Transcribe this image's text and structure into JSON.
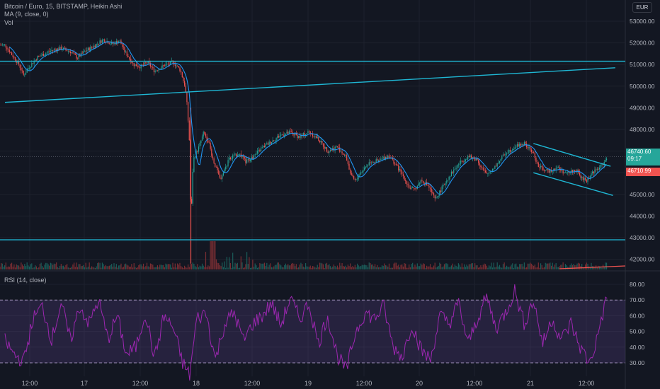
{
  "legend": {
    "main": "Bitcoin / Euro, 15, BITSTAMP, Heikin Ashi",
    "ma": "MA (9, close, 0)",
    "vol": "Vol",
    "rsi": "RSI (14, close)"
  },
  "currency": "EUR",
  "price_tags": {
    "last": "46740.60",
    "countdown": "09:17",
    "ref": "46710.99"
  },
  "colors": {
    "background": "#131722",
    "up": "#26a69a",
    "down": "#ef5350",
    "ma": "#2196f3",
    "trendline": "#1fb7d4",
    "rsi_line": "#9c27b0",
    "rsi_band": "#7e57c2",
    "axis_text": "#b2b5be"
  },
  "chart_data": [
    {
      "type": "candlestick",
      "style": "Heikin Ashi",
      "symbol": "Bitcoin / Euro",
      "interval": "15",
      "exchange": "BITSTAMP",
      "x_ticks": [
        "12:00",
        "17",
        "12:00",
        "18",
        "12:00",
        "19",
        "12:00",
        "20",
        "12:00",
        "21",
        "12:00"
      ],
      "y_ticks": [
        42000,
        43000,
        44000,
        45000,
        46000,
        47000,
        48000,
        49000,
        50000,
        51000,
        52000,
        53000
      ],
      "ylim": [
        41600,
        53300
      ],
      "price_series": [
        [
          "16 07:00",
          51900
        ],
        [
          "16 08:30",
          51450
        ],
        [
          "16 10:00",
          51000
        ],
        [
          "16 11:00",
          50500
        ],
        [
          "16 12:00",
          50850
        ],
        [
          "16 14:00",
          51350
        ],
        [
          "16 17:00",
          51650
        ],
        [
          "16 19:00",
          51750
        ],
        [
          "16 21:00",
          51600
        ],
        [
          "16 22:30",
          51300
        ],
        [
          "17 00:00",
          51600
        ],
        [
          "17 02:00",
          51850
        ],
        [
          "17 04:00",
          52150
        ],
        [
          "17 06:00",
          51950
        ],
        [
          "17 07:30",
          52100
        ],
        [
          "17 08:30",
          51650
        ],
        [
          "17 10:30",
          51000
        ],
        [
          "17 12:00",
          50900
        ],
        [
          "17 13:30",
          51100
        ],
        [
          "17 15:00",
          50700
        ],
        [
          "17 17:00",
          50950
        ],
        [
          "17 19:00",
          51100
        ],
        [
          "17 20:30",
          50750
        ],
        [
          "17 21:30",
          50000
        ],
        [
          "17 22:00",
          49000
        ],
        [
          "17 22:30",
          47200
        ],
        [
          "17 22:45",
          43500
        ],
        [
          "17 23:15",
          46600
        ],
        [
          "18 00:30",
          47200
        ],
        [
          "18 01:30",
          47850
        ],
        [
          "18 02:30",
          47450
        ],
        [
          "18 03:30",
          46600
        ],
        [
          "18 05:00",
          45700
        ],
        [
          "18 06:00",
          46150
        ],
        [
          "18 07:00",
          46650
        ],
        [
          "18 09:00",
          46900
        ],
        [
          "18 10:30",
          46500
        ],
        [
          "18 12:00",
          46700
        ],
        [
          "18 14:00",
          47150
        ],
        [
          "18 16:00",
          47450
        ],
        [
          "18 18:00",
          47750
        ],
        [
          "18 20:00",
          47850
        ],
        [
          "18 22:00",
          47650
        ],
        [
          "19 00:00",
          47900
        ],
        [
          "19 02:00",
          47550
        ],
        [
          "19 04:00",
          47000
        ],
        [
          "19 06:00",
          47200
        ],
        [
          "19 08:00",
          46700
        ],
        [
          "19 09:00",
          45850
        ],
        [
          "19 10:00",
          45600
        ],
        [
          "19 11:00",
          46000
        ],
        [
          "19 13:00",
          46500
        ],
        [
          "19 15:00",
          46550
        ],
        [
          "19 17:00",
          46800
        ],
        [
          "19 18:30",
          46400
        ],
        [
          "19 20:00",
          45900
        ],
        [
          "19 21:30",
          45300
        ],
        [
          "19 22:30",
          45200
        ],
        [
          "20 00:00",
          45650
        ],
        [
          "20 01:30",
          45400
        ],
        [
          "20 03:00",
          44750
        ],
        [
          "20 04:30",
          45300
        ],
        [
          "20 06:00",
          45850
        ],
        [
          "20 08:00",
          46400
        ],
        [
          "20 10:00",
          46750
        ],
        [
          "20 12:00",
          46600
        ],
        [
          "20 13:00",
          46200
        ],
        [
          "20 14:00",
          45900
        ],
        [
          "20 16:00",
          46350
        ],
        [
          "20 18:00",
          46900
        ],
        [
          "20 20:00",
          47200
        ],
        [
          "20 22:00",
          47350
        ],
        [
          "21 00:00",
          46900
        ],
        [
          "21 01:00",
          46300
        ],
        [
          "21 03:00",
          46050
        ],
        [
          "21 05:00",
          46250
        ],
        [
          "21 07:00",
          45950
        ],
        [
          "21 09:00",
          46150
        ],
        [
          "21 10:30",
          45700
        ],
        [
          "21 11:30",
          45650
        ],
        [
          "21 12:30",
          46000
        ],
        [
          "21 14:00",
          46200
        ],
        [
          "21 15:00",
          46450
        ],
        [
          "21 15:45",
          46740.6
        ]
      ],
      "horizontal_lines": [
        51150,
        42900
      ],
      "trend_lines": [
        {
          "from": [
            "16 07:00",
            49250
          ],
          "to": [
            "21 17:30",
            50850
          ]
        },
        {
          "from": [
            "21 00:00",
            47350
          ],
          "to": [
            "21 16:30",
            46300
          ]
        },
        {
          "from": [
            "21 00:00",
            46000
          ],
          "to": [
            "21 17:00",
            44950
          ]
        }
      ],
      "last_price": 46740.6
    },
    {
      "type": "bar",
      "name": "Vol",
      "note": "volume histogram at bottom of price pane"
    },
    {
      "type": "line",
      "name": "RSI (14, close)",
      "y_ticks": [
        30,
        40,
        50,
        60,
        70,
        80
      ],
      "ylim": [
        25,
        84
      ],
      "bands": [
        30,
        70
      ],
      "values": [
        [
          "16 07:00",
          44
        ],
        [
          "16 09:00",
          35
        ],
        [
          "16 11:00",
          31
        ],
        [
          "16 13:00",
          58
        ],
        [
          "16 15:00",
          66
        ],
        [
          "16 17:00",
          45
        ],
        [
          "16 19:00",
          68
        ],
        [
          "16 21:00",
          44
        ],
        [
          "16 23:00",
          66
        ],
        [
          "17 01:00",
          55
        ],
        [
          "17 03:00",
          70
        ],
        [
          "17 05:00",
          45
        ],
        [
          "17 07:00",
          60
        ],
        [
          "17 09:00",
          35
        ],
        [
          "17 11:00",
          40
        ],
        [
          "17 13:00",
          62
        ],
        [
          "17 15:00",
          33
        ],
        [
          "17 17:00",
          60
        ],
        [
          "17 19:00",
          52
        ],
        [
          "17 21:00",
          30
        ],
        [
          "17 22:30",
          22
        ],
        [
          "18 00:00",
          58
        ],
        [
          "18 02:00",
          62
        ],
        [
          "18 04:00",
          32
        ],
        [
          "18 06:00",
          55
        ],
        [
          "18 08:00",
          62
        ],
        [
          "18 10:00",
          44
        ],
        [
          "18 12:00",
          55
        ],
        [
          "18 14:00",
          60
        ],
        [
          "18 16:00",
          68
        ],
        [
          "18 18:00",
          54
        ],
        [
          "18 20:00",
          71
        ],
        [
          "18 22:00",
          58
        ],
        [
          "19 00:00",
          68
        ],
        [
          "19 02:00",
          42
        ],
        [
          "19 04:00",
          60
        ],
        [
          "19 06:00",
          35
        ],
        [
          "19 08:00",
          25
        ],
        [
          "19 10:00",
          50
        ],
        [
          "19 12:00",
          62
        ],
        [
          "19 14:00",
          58
        ],
        [
          "19 16:00",
          66
        ],
        [
          "19 18:00",
          40
        ],
        [
          "19 20:00",
          34
        ],
        [
          "19 22:00",
          55
        ],
        [
          "20 00:00",
          38
        ],
        [
          "20 02:00",
          32
        ],
        [
          "20 04:00",
          60
        ],
        [
          "20 06:00",
          55
        ],
        [
          "20 08:00",
          68
        ],
        [
          "20 10:00",
          42
        ],
        [
          "20 12:00",
          58
        ],
        [
          "20 14:00",
          72
        ],
        [
          "20 16:00",
          52
        ],
        [
          "20 18:00",
          62
        ],
        [
          "20 20:00",
          76
        ],
        [
          "20 22:00",
          55
        ],
        [
          "21 00:00",
          70
        ],
        [
          "21 02:00",
          42
        ],
        [
          "21 04:00",
          58
        ],
        [
          "21 06:00",
          45
        ],
        [
          "21 08:00",
          55
        ],
        [
          "21 10:00",
          40
        ],
        [
          "21 12:00",
          30
        ],
        [
          "21 13:30",
          44
        ],
        [
          "21 14:30",
          58
        ],
        [
          "21 15:45",
          71
        ]
      ]
    }
  ]
}
